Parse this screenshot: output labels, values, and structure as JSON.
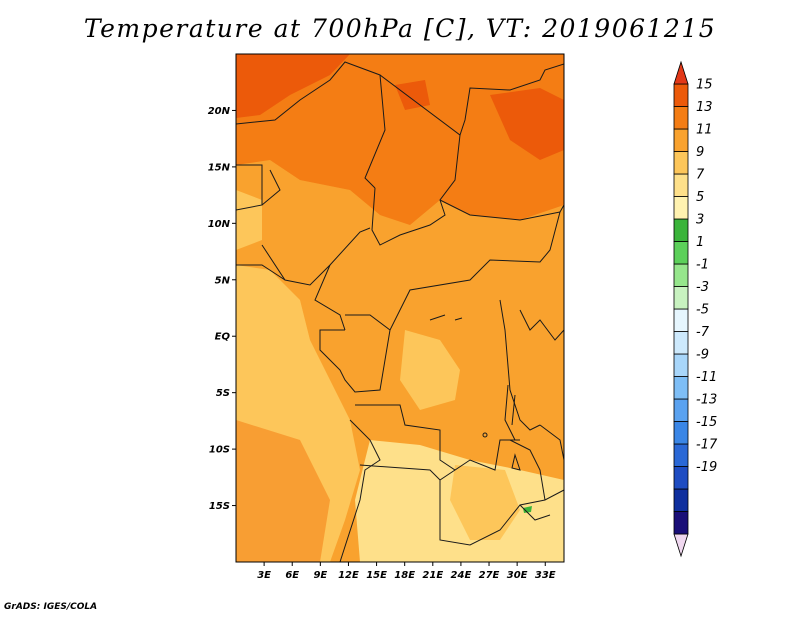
{
  "title": "Temperature at 700hPa [C], VT: 2019061215",
  "credit": "GrADS: IGES/COLA",
  "map": {
    "lon_range": [
      0,
      35
    ],
    "lat_range": [
      -20,
      25
    ],
    "lat_ticks": [
      {
        "value": 20,
        "label": "20N"
      },
      {
        "value": 15,
        "label": "15N"
      },
      {
        "value": 10,
        "label": "10N"
      },
      {
        "value": 5,
        "label": "5N"
      },
      {
        "value": 0,
        "label": "EQ"
      },
      {
        "value": -5,
        "label": "5S"
      },
      {
        "value": -10,
        "label": "10S"
      },
      {
        "value": -15,
        "label": "15S"
      }
    ],
    "lon_ticks": [
      {
        "value": 3,
        "label": "3E"
      },
      {
        "value": 6,
        "label": "6E"
      },
      {
        "value": 9,
        "label": "9E"
      },
      {
        "value": 12,
        "label": "12E"
      },
      {
        "value": 15,
        "label": "15E"
      },
      {
        "value": 18,
        "label": "18E"
      },
      {
        "value": 21,
        "label": "21E"
      },
      {
        "value": 24,
        "label": "24E"
      },
      {
        "value": 27,
        "label": "27E"
      },
      {
        "value": 30,
        "label": "30E"
      },
      {
        "value": 33,
        "label": "33E"
      }
    ]
  },
  "colorbar": {
    "labels": [
      "15",
      "13",
      "11",
      "9",
      "7",
      "5",
      "3",
      "1",
      "-1",
      "-3",
      "-5",
      "-7",
      "-9",
      "-11",
      "-13",
      "-15",
      "-17",
      "-19"
    ],
    "colors": [
      "#f0d8f0",
      "#1a0f78",
      "#0f2f9e",
      "#1e4cc2",
      "#2a68d6",
      "#3a86e6",
      "#5aa2f0",
      "#7ebef6",
      "#a8d6fa",
      "#cde9fc",
      "#e6f6fe",
      "#c8f2c0",
      "#96e68c",
      "#5cd05a",
      "#3ab43a",
      "#fff2b0",
      "#fee08a",
      "#fdc65a",
      "#f9a22e",
      "#f47d14",
      "#ec5a0a",
      "#e23818"
    ]
  }
}
